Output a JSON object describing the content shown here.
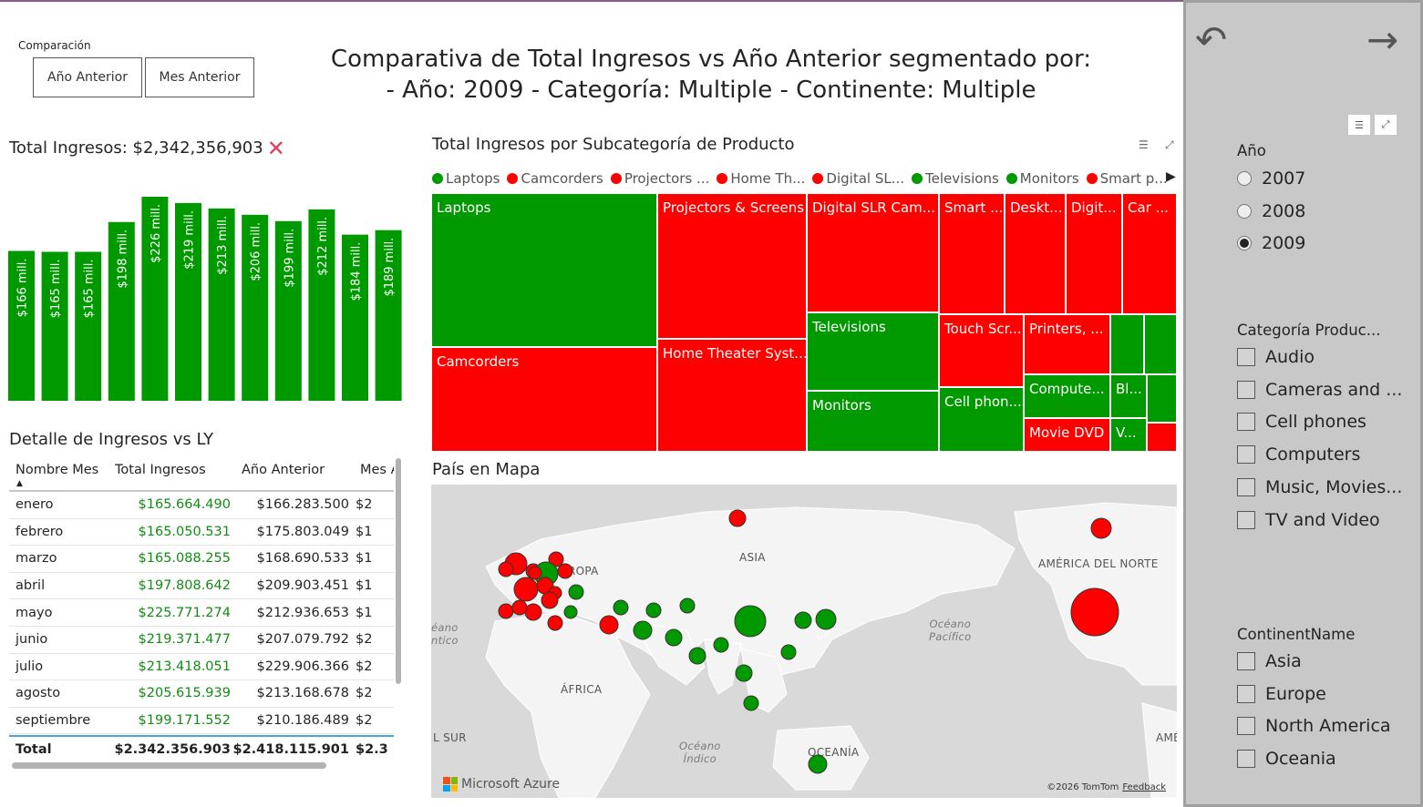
{
  "comparison": {
    "label": "Comparación",
    "buttons": [
      "Año Anterior",
      "Mes Anterior"
    ]
  },
  "main_title": "Comparativa de Total Ingresos vs Año Anterior segmentado por:\n- Año: 2009 - Categoría: Multiple - Continente: Multiple",
  "kpi": {
    "title": "Total Ingresos: $2,342,356,903",
    "status_icon": "cross-mark-icon",
    "status_color": "#e83a5a"
  },
  "chart_data": {
    "type": "bar",
    "title": "",
    "xlabel": "",
    "ylabel": "",
    "values": [
      166,
      165,
      165,
      198,
      226,
      219,
      213,
      206,
      199,
      212,
      184,
      189
    ],
    "data_labels": [
      "$166 mill.",
      "$165 mill.",
      "$165 mill.",
      "$198 mill.",
      "$226 mill.",
      "$219 mill.",
      "$213 mill.",
      "$206 mill.",
      "$199 mill.",
      "$212 mill.",
      "$184 mill.",
      "$189 mill."
    ],
    "ylim": [
      0,
      226
    ],
    "color": "#009900",
    "grid": false
  },
  "table": {
    "title": "Detalle de Ingresos vs LY",
    "headers": [
      "Nombre Mes",
      "Total Ingresos",
      "Año Anterior",
      "Mes A"
    ],
    "rows": [
      [
        "enero",
        "$165.664.490",
        "$166.283.500",
        "$2"
      ],
      [
        "febrero",
        "$165.050.531",
        "$175.803.049",
        "$1"
      ],
      [
        "marzo",
        "$165.088.255",
        "$168.690.533",
        "$1"
      ],
      [
        "abril",
        "$197.808.642",
        "$209.903.451",
        "$1"
      ],
      [
        "mayo",
        "$225.771.274",
        "$212.936.653",
        "$1"
      ],
      [
        "junio",
        "$219.371.477",
        "$207.079.792",
        "$2"
      ],
      [
        "julio",
        "$213.418.051",
        "$229.906.366",
        "$2"
      ],
      [
        "agosto",
        "$205.615.939",
        "$213.168.678",
        "$2"
      ],
      [
        "septiembre",
        "$199.171.552",
        "$210.186.489",
        "$2"
      ]
    ],
    "total": [
      "Total",
      "$2.342.356.903",
      "$2.418.115.901",
      "$2.3"
    ],
    "positive_color": "#128c12"
  },
  "treemap": {
    "title": "Total Ingresos por Subcategoría de Producto",
    "legend": [
      {
        "label": "Laptops",
        "color": "#009900"
      },
      {
        "label": "Camcorders",
        "color": "#ff0000"
      },
      {
        "label": "Projectors ...",
        "color": "#ff0000"
      },
      {
        "label": "Home Th...",
        "color": "#ff0000"
      },
      {
        "label": "Digital SL...",
        "color": "#ff0000"
      },
      {
        "label": "Televisions",
        "color": "#009900"
      },
      {
        "label": "Monitors",
        "color": "#009900"
      },
      {
        "label": "Smart p...",
        "color": "#ff0000"
      }
    ],
    "tiles": [
      {
        "label": "Laptops",
        "color": "g"
      },
      {
        "label": "Camcorders",
        "color": "r"
      },
      {
        "label": "Projectors & Screens",
        "color": "r"
      },
      {
        "label": "Home Theater Syst...",
        "color": "r"
      },
      {
        "label": "Digital SLR Cam...",
        "color": "r"
      },
      {
        "label": "Televisions",
        "color": "g"
      },
      {
        "label": "Monitors",
        "color": "g"
      },
      {
        "label": "Smart ...",
        "color": "r"
      },
      {
        "label": "Deskt...",
        "color": "r"
      },
      {
        "label": "Digit...",
        "color": "r"
      },
      {
        "label": "Car ...",
        "color": "r"
      },
      {
        "label": "Touch Scr...",
        "color": "r"
      },
      {
        "label": "Cell phon...",
        "color": "g"
      },
      {
        "label": "Printers, ...",
        "color": "r"
      },
      {
        "label": "Compute...",
        "color": "g"
      },
      {
        "label": "Movie DVD",
        "color": "r"
      },
      {
        "label": "Bl...",
        "color": "g"
      },
      {
        "label": "V...",
        "color": "g"
      },
      {
        "label": "",
        "color": "g"
      },
      {
        "label": "",
        "color": "g"
      },
      {
        "label": "",
        "color": "g"
      },
      {
        "label": "",
        "color": "g"
      },
      {
        "label": "",
        "color": "r"
      }
    ]
  },
  "map": {
    "title": "País en Mapa",
    "labels": {
      "asia": "ASIA",
      "europa": "ROPA",
      "africa": "ÁFRICA",
      "north_america": "AMÉRICA DEL NORTE",
      "oceania": "OCEANÍA",
      "south": "L SUR",
      "ame": "AMÉ",
      "atlantic": "éano\nntico",
      "pacific": "Océano\nPacífico",
      "indian": "Océano\nÍndico"
    },
    "brand": "Microsoft Azure",
    "copyright": "©2026 TomTom",
    "feedback": "Feedback",
    "green": "#009900",
    "red": "#ff0000"
  },
  "filters": {
    "back_icon": "undo-arrow-icon",
    "forward_icon": "right-arrow-icon",
    "year": {
      "title": "Año",
      "options": [
        "2007",
        "2008",
        "2009"
      ],
      "selected": "2009"
    },
    "category": {
      "title": "Categoría Produc...",
      "options": [
        "Audio",
        "Cameras and ...",
        "Cell phones",
        "Computers",
        "Music, Movies...",
        "TV and Video"
      ]
    },
    "continent": {
      "title": "ContinentName",
      "options": [
        "Asia",
        "Europe",
        "North America",
        "Oceania"
      ]
    }
  }
}
